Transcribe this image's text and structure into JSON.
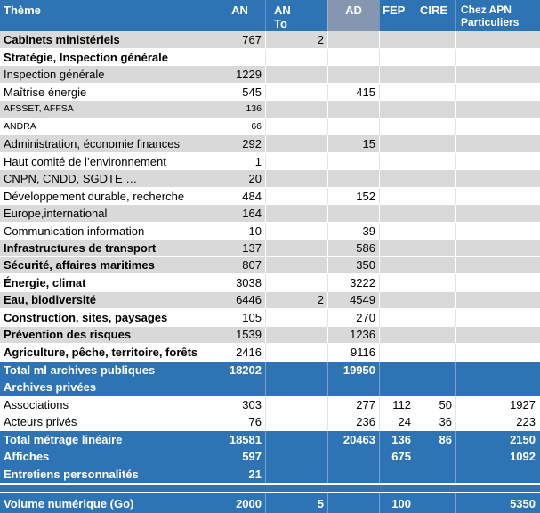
{
  "colors": {
    "accent_blue": "#2E74B5",
    "ad_header_blue_gray": "#8496B0",
    "band_gray": "#D9D9D9",
    "text_dark": "#000000",
    "text_light": "#FFFFFF"
  },
  "table": {
    "columns": [
      {
        "key": "theme",
        "label": "Thème"
      },
      {
        "key": "an",
        "label": "AN"
      },
      {
        "key": "an_total",
        "label": "AN\nTo"
      },
      {
        "key": "ad",
        "label": "AD",
        "highlighted": true
      },
      {
        "key": "fep",
        "label": "FEP"
      },
      {
        "key": "cire",
        "label": "CIRE"
      },
      {
        "key": "apn",
        "label": "Chez APN\nParticuliers"
      }
    ],
    "rows": [
      {
        "theme": "Cabinets ministériels",
        "values": [
          "767",
          "2",
          "",
          "",
          "",
          ""
        ],
        "variant": "gray",
        "bold": true
      },
      {
        "theme": "Stratégie, Inspection générale",
        "values": [
          "",
          "",
          "",
          "",
          "",
          ""
        ],
        "variant": "white",
        "bold": true
      },
      {
        "theme": "Inspection générale",
        "values": [
          "1229",
          "",
          "",
          "",
          "",
          ""
        ],
        "variant": "gray"
      },
      {
        "theme": "Maîtrise énergie",
        "values": [
          "545",
          "",
          "415",
          "",
          "",
          ""
        ],
        "variant": "white"
      },
      {
        "theme": "AFSSET, AFFSA",
        "values": [
          "136",
          "",
          "",
          "",
          "",
          ""
        ],
        "variant": "gray",
        "small": true
      },
      {
        "theme": "ANDRA",
        "values": [
          "66",
          "",
          "",
          "",
          "",
          ""
        ],
        "variant": "white",
        "small": true
      },
      {
        "theme": "Administration, économie finances",
        "values": [
          "292",
          "",
          "15",
          "",
          "",
          ""
        ],
        "variant": "gray"
      },
      {
        "theme": "Haut comité de l’environnement",
        "values": [
          "1",
          "",
          "",
          "",
          "",
          ""
        ],
        "variant": "white"
      },
      {
        "theme": "CNPN, CNDD, SGDTE …",
        "values": [
          "20",
          "",
          "",
          "",
          "",
          ""
        ],
        "variant": "gray"
      },
      {
        "theme": "Développement durable, recherche",
        "values": [
          "484",
          "",
          "152",
          "",
          "",
          ""
        ],
        "variant": "white"
      },
      {
        "theme": "Europe,international",
        "values": [
          "164",
          "",
          "",
          "",
          "",
          ""
        ],
        "variant": "gray"
      },
      {
        "theme": "Communication information",
        "values": [
          "10",
          "",
          "39",
          "",
          "",
          ""
        ],
        "variant": "white"
      },
      {
        "theme": "Infrastructures de transport",
        "values": [
          "137",
          "",
          "586",
          "",
          "",
          ""
        ],
        "variant": "gray",
        "bold": true
      },
      {
        "theme": "Sécurité, affaires maritimes",
        "values": [
          "807",
          "",
          "350",
          "",
          "",
          ""
        ],
        "variant": "gray",
        "bold": true
      },
      {
        "theme": "Énergie, climat",
        "values": [
          "3038",
          "",
          "3222",
          "",
          "",
          ""
        ],
        "variant": "white",
        "bold": true
      },
      {
        "theme": "Eau, biodiversité",
        "values": [
          "6446",
          "2",
          "4549",
          "",
          "",
          ""
        ],
        "variant": "gray",
        "bold": true
      },
      {
        "theme": "Construction, sites, paysages",
        "values": [
          "105",
          "",
          "270",
          "",
          "",
          ""
        ],
        "variant": "white",
        "bold": true
      },
      {
        "theme": "Prévention des risques",
        "values": [
          "1539",
          "",
          "1236",
          "",
          "",
          ""
        ],
        "variant": "gray",
        "bold": true
      },
      {
        "theme": "Agriculture, pêche, territoire, forêts",
        "values": [
          "2416",
          "",
          "9116",
          "",
          "",
          ""
        ],
        "variant": "white",
        "bold": true
      },
      {
        "theme": "Total ml archives publiques",
        "values": [
          "18202",
          "",
          "19950",
          "",
          "",
          ""
        ],
        "variant": "blue",
        "bold": true
      },
      {
        "theme": "Archives privées",
        "values": [
          "",
          "",
          "",
          "",
          "",
          ""
        ],
        "variant": "blue",
        "bold": true
      },
      {
        "theme": "Associations",
        "values": [
          "303",
          "",
          "277",
          "112",
          "50",
          "1927"
        ],
        "variant": "white"
      },
      {
        "theme": "Acteurs privés",
        "values": [
          "76",
          "",
          "236",
          "24",
          "36",
          "223"
        ],
        "variant": "white"
      },
      {
        "theme": "Total métrage linéaire",
        "values": [
          "18581",
          "",
          "20463",
          "136",
          "86",
          "2150"
        ],
        "variant": "blue",
        "bold": true
      },
      {
        "theme": "Affiches",
        "values": [
          "597",
          "",
          "",
          "675",
          "",
          "1092"
        ],
        "variant": "blue",
        "bold": true
      },
      {
        "theme": "Entretiens personnalités",
        "values": [
          "21",
          "",
          "",
          "",
          "",
          ""
        ],
        "variant": "blue",
        "bold": true
      },
      {
        "theme": "",
        "values": [
          "",
          "",
          "",
          "",
          "",
          ""
        ],
        "variant": "spacer"
      },
      {
        "theme": "Volume numérique (Go)",
        "values": [
          "2000",
          "5",
          "",
          "100",
          "",
          "5350"
        ],
        "variant": "blue",
        "bold": true
      }
    ]
  }
}
